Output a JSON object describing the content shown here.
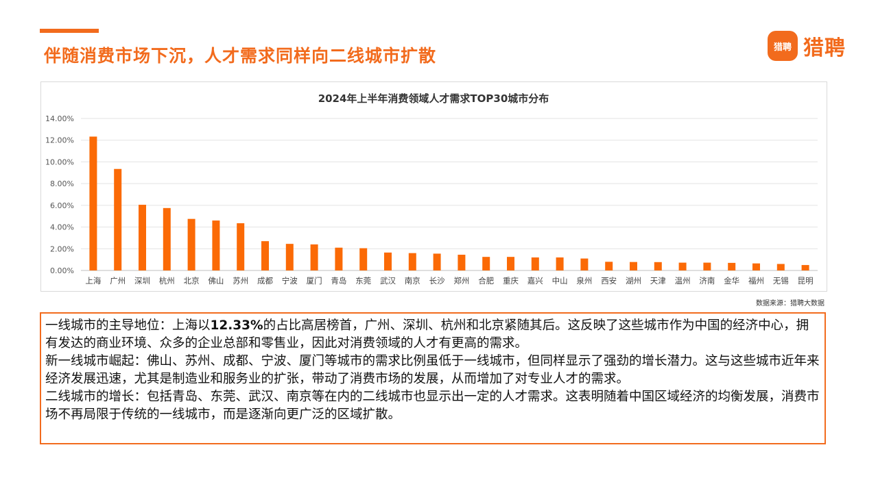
{
  "header": {
    "title": "伴随消费市场下沉，人才需求同样向二线城市扩散"
  },
  "logo": {
    "badge_text": "猎聘",
    "brand_text": "猎聘",
    "brand_color": "#f26b1d"
  },
  "chart_data": {
    "type": "bar",
    "title": "2024年上半年消费领域人才需求TOP30城市分布",
    "xlabel": "",
    "ylabel": "",
    "ylim": [
      0,
      14
    ],
    "yticks": [
      0,
      2,
      4,
      6,
      8,
      10,
      12,
      14
    ],
    "ytick_labels": [
      "0.00%",
      "2.00%",
      "4.00%",
      "6.00%",
      "8.00%",
      "10.00%",
      "12.00%",
      "14.00%"
    ],
    "grid": true,
    "bar_color": "#fb6a06",
    "categories": [
      "上海",
      "广州",
      "深圳",
      "杭州",
      "北京",
      "佛山",
      "苏州",
      "成都",
      "宁波",
      "厦门",
      "青岛",
      "东莞",
      "武汉",
      "南京",
      "长沙",
      "郑州",
      "合肥",
      "重庆",
      "嘉兴",
      "中山",
      "泉州",
      "西安",
      "湖州",
      "天津",
      "温州",
      "济南",
      "金华",
      "福州",
      "无锡",
      "昆明"
    ],
    "values": [
      12.33,
      9.35,
      6.05,
      5.75,
      4.75,
      4.6,
      4.35,
      2.7,
      2.45,
      2.4,
      2.1,
      2.05,
      1.65,
      1.6,
      1.55,
      1.45,
      1.25,
      1.25,
      1.2,
      1.2,
      1.1,
      0.8,
      0.78,
      0.77,
      0.72,
      0.72,
      0.7,
      0.65,
      0.6,
      0.5
    ]
  },
  "source": "数据来源：猎聘大数据",
  "analysis": {
    "p1_pre": "一线城市的主导地位：上海以",
    "p1_bold": "12.33%",
    "p1_post": "的占比高居榜首，广州、深圳、杭州和北京紧随其后。这反映了这些城市作为中国的经济中心，拥有发达的商业环境、众多的企业总部和零售业，因此对消费领域的人才有更高的需求。",
    "p2": "新一线城市崛起：佛山、苏州、成都、宁波、厦门等城市的需求比例虽低于一线城市，但同样显示了强劲的增长潜力。这与这些城市近年来经济发展迅速，尤其是制造业和服务业的扩张，带动了消费市场的发展，从而增加了对专业人才的需求。",
    "p3": "二线城市的增长：包括青岛、东莞、武汉、南京等在内的二线城市也显示出一定的人才需求。这表明随着中国区域经济的均衡发展，消费市场不再局限于传统的一线城市，而是逐渐向更广泛的区域扩散。"
  }
}
